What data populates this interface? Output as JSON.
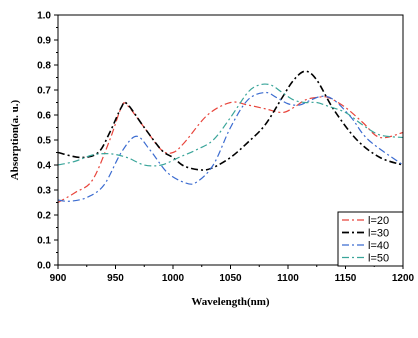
{
  "chart_data": {
    "type": "line",
    "xlabel": "Wavelength(nm)",
    "ylabel": "Absorption(a. u.)",
    "xlim": [
      900,
      1200
    ],
    "ylim": [
      0.0,
      1.0
    ],
    "xticks": [
      900,
      950,
      1000,
      1050,
      1100,
      1150,
      1200
    ],
    "yticks": [
      0.0,
      0.1,
      0.2,
      0.3,
      0.4,
      0.5,
      0.6,
      0.7,
      0.8,
      0.9,
      1.0
    ],
    "xtick_labels": [
      "900",
      "950",
      "1000",
      "1050",
      "1100",
      "1150",
      "1200"
    ],
    "ytick_labels": [
      "0.0",
      "0.1",
      "0.2",
      "0.3",
      "0.4",
      "0.5",
      "0.6",
      "0.7",
      "0.8",
      "0.9",
      "1.0"
    ],
    "grid": false,
    "legend_position": "bottom-right",
    "series": [
      {
        "name": "l=20",
        "color": "#e8453c",
        "dash": "dash-dot",
        "x": [
          900,
          915,
          930,
          945,
          955,
          960,
          975,
          990,
          1000,
          1010,
          1030,
          1050,
          1065,
          1080,
          1095,
          1105,
          1115,
          1125,
          1135,
          1150,
          1165,
          1180,
          1200
        ],
        "y": [
          0.25,
          0.29,
          0.34,
          0.5,
          0.63,
          0.64,
          0.55,
          0.46,
          0.45,
          0.49,
          0.6,
          0.65,
          0.64,
          0.625,
          0.61,
          0.63,
          0.66,
          0.67,
          0.67,
          0.63,
          0.57,
          0.51,
          0.53
        ]
      },
      {
        "name": "l=30",
        "color": "#000000",
        "dash": "dash-dot",
        "x": [
          900,
          920,
          935,
          945,
          955,
          960,
          975,
          990,
          1000,
          1010,
          1025,
          1035,
          1050,
          1065,
          1080,
          1095,
          1105,
          1115,
          1125,
          1140,
          1160,
          1180,
          1200
        ],
        "y": [
          0.45,
          0.43,
          0.45,
          0.53,
          0.63,
          0.645,
          0.55,
          0.46,
          0.43,
          0.395,
          0.38,
          0.39,
          0.43,
          0.49,
          0.56,
          0.67,
          0.74,
          0.775,
          0.74,
          0.62,
          0.5,
          0.43,
          0.4
        ]
      },
      {
        "name": "l=40",
        "color": "#3c6cd0",
        "dash": "dash-dot",
        "x": [
          900,
          910,
          925,
          940,
          955,
          968,
          980,
          995,
          1010,
          1020,
          1035,
          1050,
          1065,
          1080,
          1090,
          1100,
          1110,
          1120,
          1130,
          1140,
          1155,
          1170,
          1200
        ],
        "y": [
          0.26,
          0.255,
          0.27,
          0.32,
          0.45,
          0.515,
          0.46,
          0.37,
          0.33,
          0.33,
          0.4,
          0.55,
          0.66,
          0.69,
          0.67,
          0.645,
          0.64,
          0.66,
          0.675,
          0.66,
          0.59,
          0.5,
          0.4
        ]
      },
      {
        "name": "l=50",
        "color": "#3aa59a",
        "dash": "dash-dot",
        "x": [
          900,
          915,
          930,
          945,
          960,
          975,
          990,
          1005,
          1020,
          1035,
          1050,
          1065,
          1075,
          1085,
          1095,
          1105,
          1115,
          1125,
          1135,
          1150,
          1165,
          1180,
          1200
        ],
        "y": [
          0.4,
          0.415,
          0.44,
          0.445,
          0.43,
          0.4,
          0.4,
          0.43,
          0.46,
          0.5,
          0.59,
          0.69,
          0.72,
          0.72,
          0.69,
          0.66,
          0.65,
          0.65,
          0.635,
          0.61,
          0.56,
          0.52,
          0.51
        ]
      }
    ]
  }
}
